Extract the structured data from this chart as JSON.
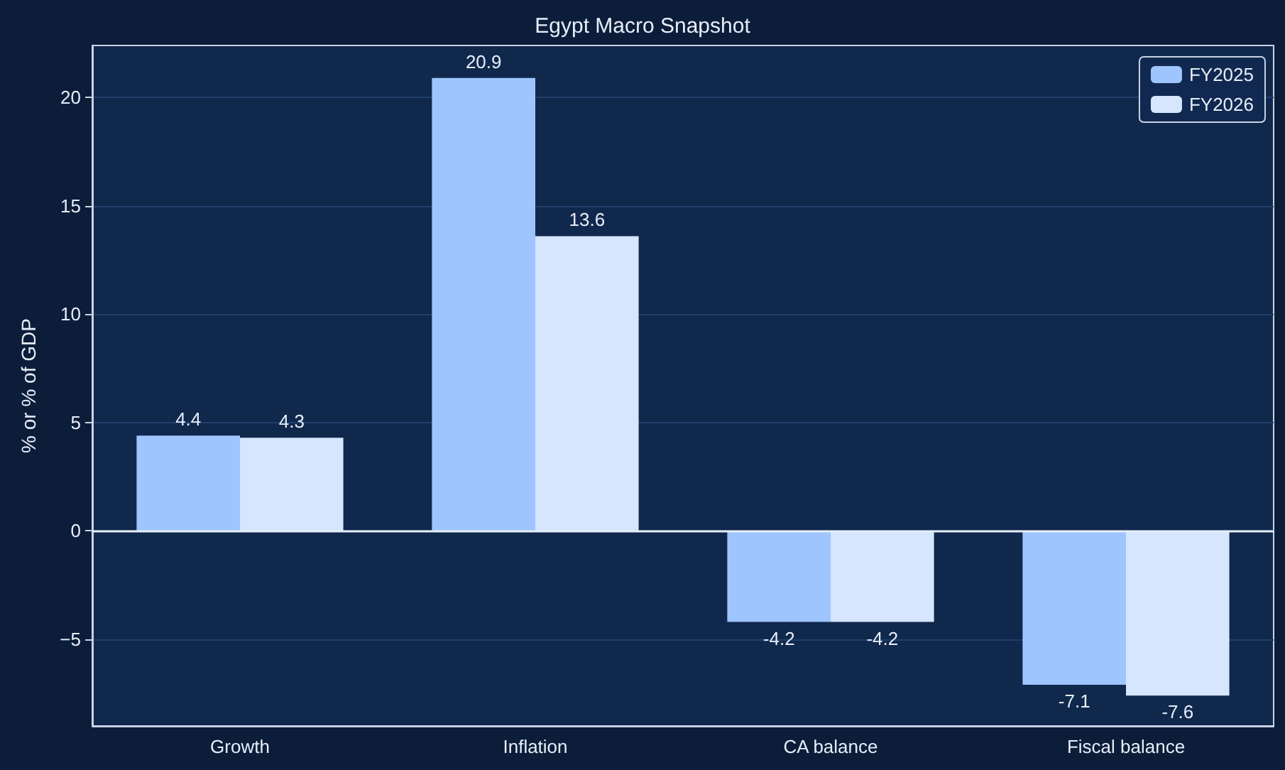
{
  "chart_data": {
    "type": "bar",
    "title": "Egypt Macro Snapshot",
    "ylabel": "% or % of GDP",
    "categories": [
      "Growth",
      "Inflation",
      "CA balance",
      "Fiscal balance"
    ],
    "series": [
      {
        "name": "FY2025",
        "color": "#9ec5fe",
        "values": [
          4.4,
          20.9,
          -4.2,
          -7.1
        ]
      },
      {
        "name": "FY2026",
        "color": "#d6e6ff",
        "values": [
          4.3,
          13.6,
          -4.2,
          -7.6
        ]
      }
    ],
    "ylim": [
      -9,
      22.4
    ],
    "yticks": [
      {
        "value": -5,
        "label": "−5"
      },
      0,
      5,
      10,
      15,
      20
    ],
    "ref_lines": [
      {
        "axis": "y",
        "value": 0,
        "color": "#e6edf7"
      }
    ],
    "grid": "y",
    "legend": "top right",
    "data_labels": true
  }
}
